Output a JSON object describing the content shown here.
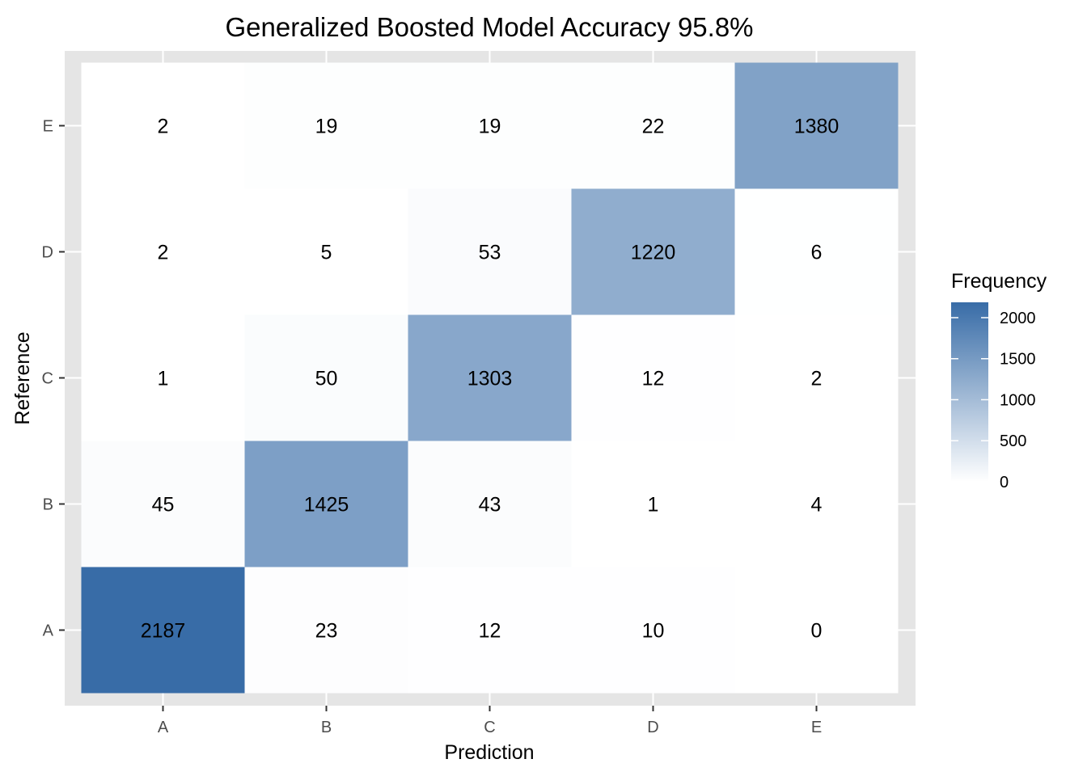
{
  "chart_data": {
    "type": "heatmap",
    "title": "Generalized Boosted Model Accuracy 95.8%",
    "xlabel": "Prediction",
    "ylabel": "Reference",
    "x_categories": [
      "A",
      "B",
      "C",
      "D",
      "E"
    ],
    "y_categories": [
      "A",
      "B",
      "C",
      "D",
      "E"
    ],
    "matrix": [
      [
        2187,
        23,
        12,
        10,
        0
      ],
      [
        45,
        1425,
        43,
        1,
        4
      ],
      [
        1,
        50,
        1303,
        12,
        2
      ],
      [
        2,
        5,
        53,
        1220,
        6
      ],
      [
        2,
        19,
        19,
        22,
        1380
      ]
    ],
    "legend": {
      "title": "Frequency",
      "position": "right",
      "ticks": [
        0,
        500,
        1000,
        1500,
        2000
      ],
      "range": [
        0,
        2187
      ],
      "low_color": "#ffffff",
      "high_color": "#386ca7"
    },
    "panel_background": "#e5e5e5",
    "grid": true
  }
}
